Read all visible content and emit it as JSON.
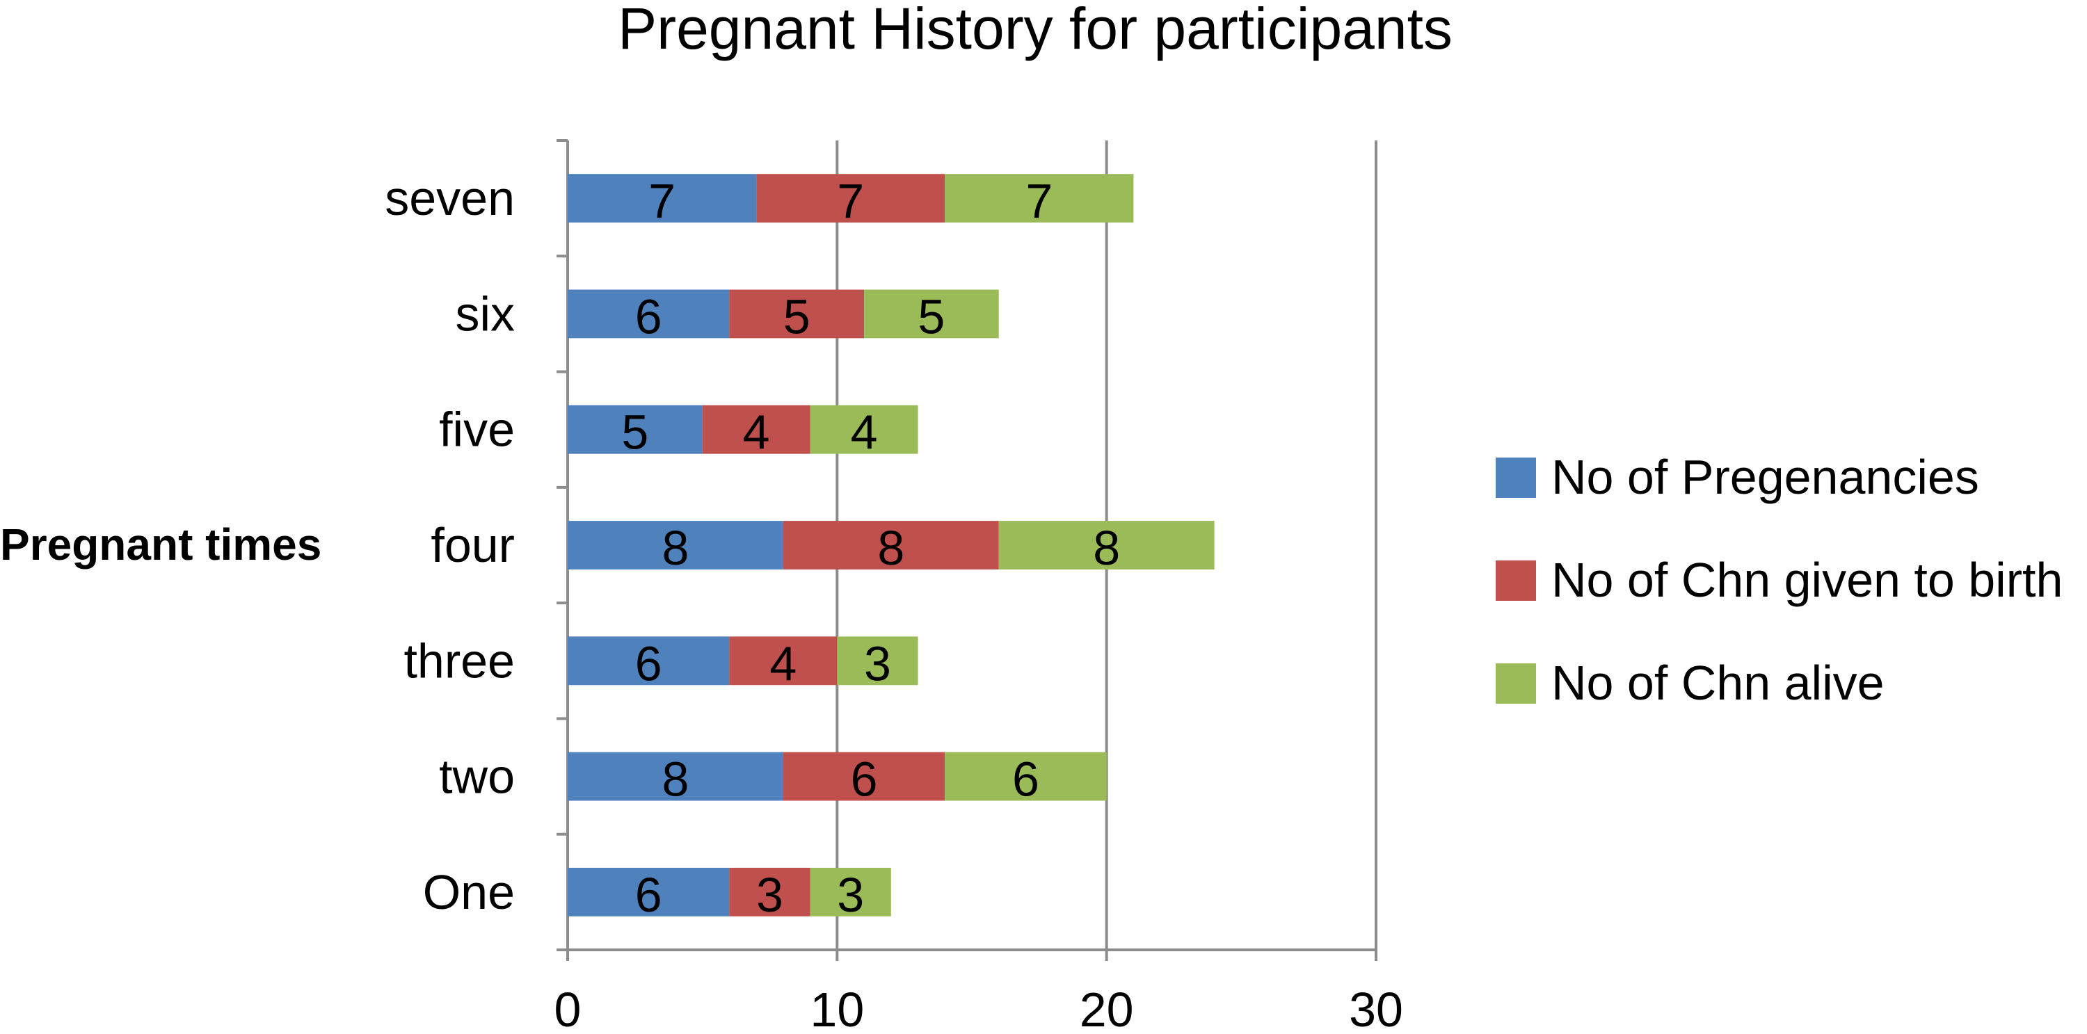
{
  "chart_data": {
    "type": "bar",
    "orientation": "horizontal",
    "stacked": true,
    "title": "Pregnant History for participants",
    "ylabel": "Pregnant times",
    "xlabel": "",
    "categories": [
      "One",
      "two",
      "three",
      "four",
      "five",
      "six",
      "seven"
    ],
    "xlim": [
      0,
      30
    ],
    "xticks": [
      "0",
      "10",
      "20",
      "30"
    ],
    "grid": "vertical major gridlines",
    "legend_position": "right",
    "series": [
      {
        "name": "No of Pregenancies",
        "color": "#4F81BD",
        "values": [
          6,
          8,
          6,
          8,
          5,
          6,
          7
        ]
      },
      {
        "name": "No of Chn given to birth",
        "color": "#C0504D",
        "values": [
          3,
          6,
          4,
          8,
          4,
          5,
          7
        ]
      },
      {
        "name": "No of Chn alive",
        "color": "#9BBB59",
        "values": [
          3,
          6,
          3,
          8,
          4,
          5,
          7
        ]
      }
    ]
  }
}
